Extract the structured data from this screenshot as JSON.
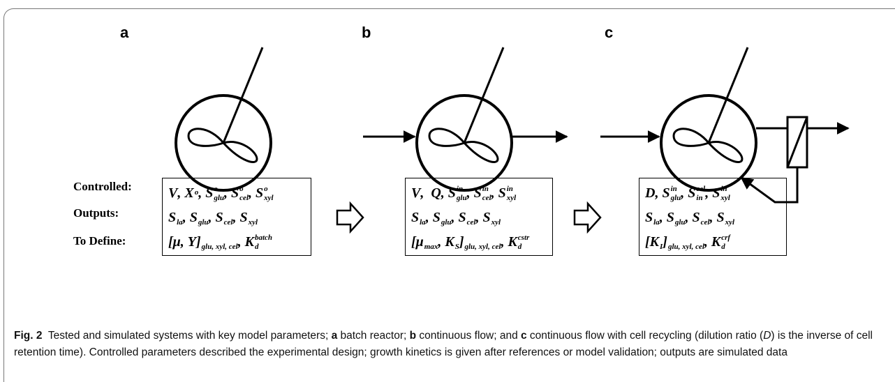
{
  "panels": [
    {
      "label": "a",
      "rows": [
        [
          {
            "base": "V"
          },
          {
            "base": ", "
          },
          {
            "base": "X",
            "sup": "o"
          },
          {
            "base": ", "
          },
          {
            "base": "S",
            "sup": "o",
            "sub": "glu"
          },
          {
            "base": ", "
          },
          {
            "base": "S",
            "sup": "o",
            "sub": "cel"
          },
          {
            "base": ", "
          },
          {
            "base": "S",
            "sup": "o",
            "sub": "xyl"
          }
        ],
        [
          {
            "base": "S",
            "sub": "la"
          },
          {
            "base": ", "
          },
          {
            "base": "S",
            "sub": "glu"
          },
          {
            "base": ", "
          },
          {
            "base": "S",
            "sub": "cel"
          },
          {
            "base": ", "
          },
          {
            "base": "S",
            "sub": "xyl"
          }
        ],
        [
          {
            "base": "[μ, Y]",
            "sub": "glu, xyl, cel"
          },
          {
            "base": ", "
          },
          {
            "base": "K",
            "sup": "batch",
            "sub": "d"
          }
        ]
      ]
    },
    {
      "label": "b",
      "rows": [
        [
          {
            "base": "V"
          },
          {
            "base": ",  "
          },
          {
            "base": "Q"
          },
          {
            "base": ", "
          },
          {
            "base": "S",
            "sup": "in",
            "sub": "glu"
          },
          {
            "base": ", "
          },
          {
            "base": "S",
            "sup": "in",
            "sub": "cel"
          },
          {
            "base": ", "
          },
          {
            "base": "S",
            "sup": "in",
            "sub": "xyl"
          }
        ],
        [
          {
            "base": "S",
            "sub": "la"
          },
          {
            "base": ", "
          },
          {
            "base": "S",
            "sub": "glu"
          },
          {
            "base": ", "
          },
          {
            "base": "S",
            "sub": "cel"
          },
          {
            "base": ", "
          },
          {
            "base": "S",
            "sub": "xyl"
          }
        ],
        [
          {
            "base": "[μ",
            "sub": "max"
          },
          {
            "base": ", "
          },
          {
            "base": "K",
            "sub": "S"
          },
          {
            "base": "]",
            "sub": "glu, xyl, cel"
          },
          {
            "base": ", "
          },
          {
            "base": "K",
            "sup": "cstr",
            "sub": "d"
          }
        ]
      ]
    },
    {
      "label": "c",
      "rows": [
        [
          {
            "base": "D"
          },
          {
            "base": ", "
          },
          {
            "base": "S",
            "sup": "in",
            "sub": "glu"
          },
          {
            "base": ", "
          },
          {
            "base": "S",
            "sup": "cel",
            "sub": "in"
          },
          {
            "base": ", "
          },
          {
            "base": "S",
            "sup": "in",
            "sub": "xyl"
          }
        ],
        [
          {
            "base": "S",
            "sub": "la"
          },
          {
            "base": ", "
          },
          {
            "base": "S",
            "sub": "glu"
          },
          {
            "base": ", "
          },
          {
            "base": "S",
            "sub": "cel"
          },
          {
            "base": ", "
          },
          {
            "base": "S",
            "sub": "xyl"
          }
        ],
        [
          {
            "base": "[K",
            "sub": "I"
          },
          {
            "base": "]",
            "sub": "glu, xyl, cel"
          },
          {
            "base": ", "
          },
          {
            "base": "K",
            "sup": "crf",
            "sub": "d"
          }
        ]
      ]
    }
  ],
  "row_labels": [
    "Controlled:",
    "Outputs:",
    "To Define:"
  ],
  "caption": [
    {
      "text": "Fig. 2",
      "style": "bold"
    },
    {
      "text": "  Tested and simulated systems with key model parameters; "
    },
    {
      "text": "a",
      "style": "bold"
    },
    {
      "text": " batch reactor; "
    },
    {
      "text": "b",
      "style": "bold"
    },
    {
      "text": " continuous flow; and "
    },
    {
      "text": "c",
      "style": "bold"
    },
    {
      "text": " continuous flow with cell recycling (dilution ratio ("
    },
    {
      "text": "D",
      "style": "italic"
    },
    {
      "text": ") is the inverse of cell retention time). Controlled parameters described the experimental design; growth kinetics is given after references or model validation; outputs are simulated data"
    }
  ]
}
